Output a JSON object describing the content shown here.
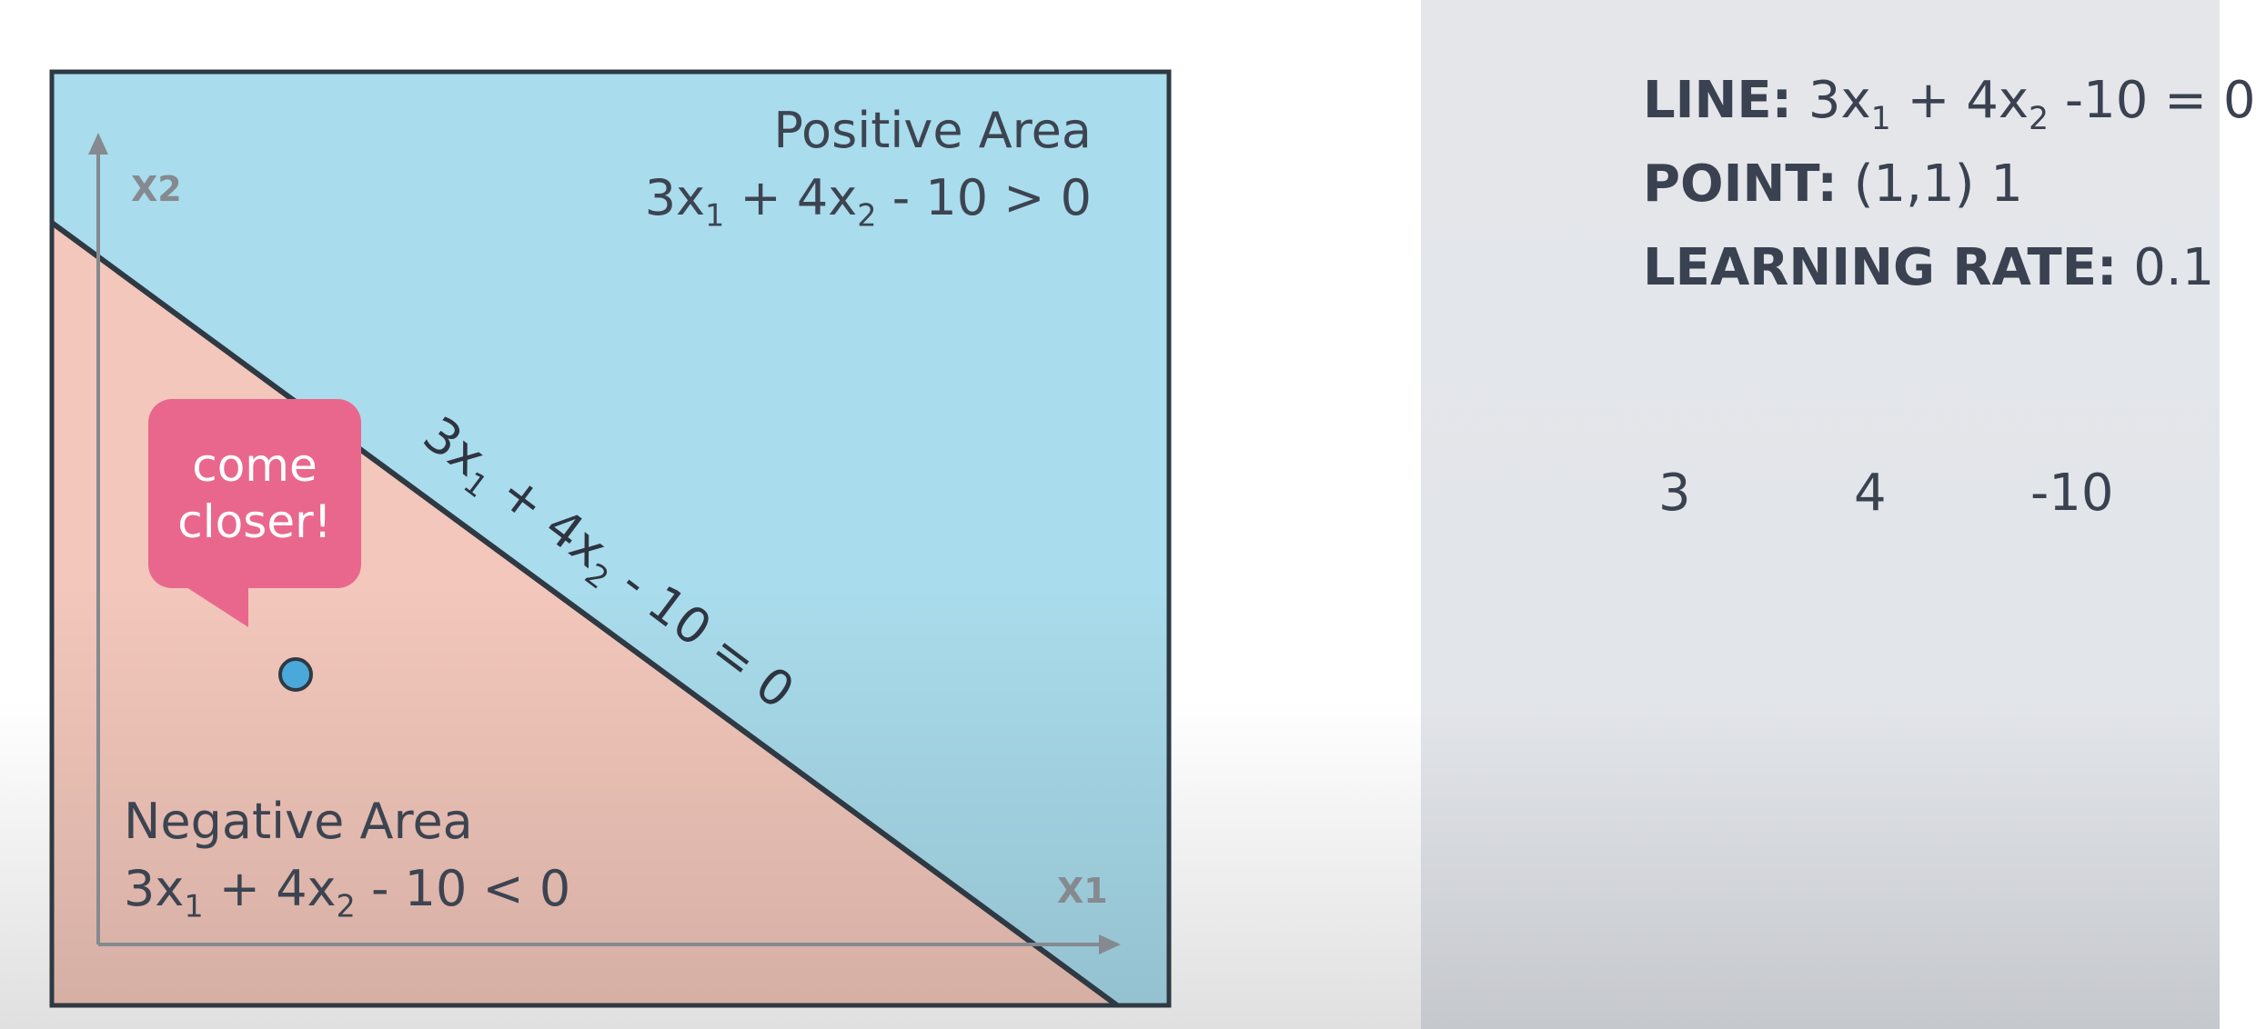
{
  "colors": {
    "positive_region": "#a9dcec",
    "negative_region": "#f3c7bb",
    "frame": "#2f3943",
    "axis": "#858a90",
    "point_fill": "#4aa9da",
    "bubble": "#e9678d",
    "text": "#3d4451"
  },
  "diagram": {
    "axes": {
      "x_label": "X1",
      "y_label": "X2"
    },
    "positive_area": {
      "title": "Positive Area",
      "equation": {
        "a": "3x",
        "s1": "1",
        "b": " + 4x",
        "s2": "2",
        "c": " - 10 > 0"
      }
    },
    "negative_area": {
      "title": "Negative Area",
      "equation": {
        "a": "3x",
        "s1": "1",
        "b": " + 4x",
        "s2": "2",
        "c": " - 10 < 0"
      }
    },
    "boundary_label": {
      "a": "3x",
      "s1": "1",
      "b": " + 4x",
      "s2": "2",
      "c": " - 10 = 0"
    },
    "callout": {
      "line1": "come",
      "line2": "closer!"
    },
    "point_icon": "circle-point"
  },
  "panel": {
    "line": {
      "key": "LINE:",
      "a": " 3x",
      "s1": "1",
      "b": " + 4x",
      "s2": "2",
      "c": " -10 = 0"
    },
    "point": {
      "key": "POINT:",
      "value": " (1,1) 1"
    },
    "learning_rate": {
      "key": "LEARNING RATE:",
      "value": " 0.1"
    },
    "weights": [
      "3",
      "4",
      "-10"
    ]
  }
}
